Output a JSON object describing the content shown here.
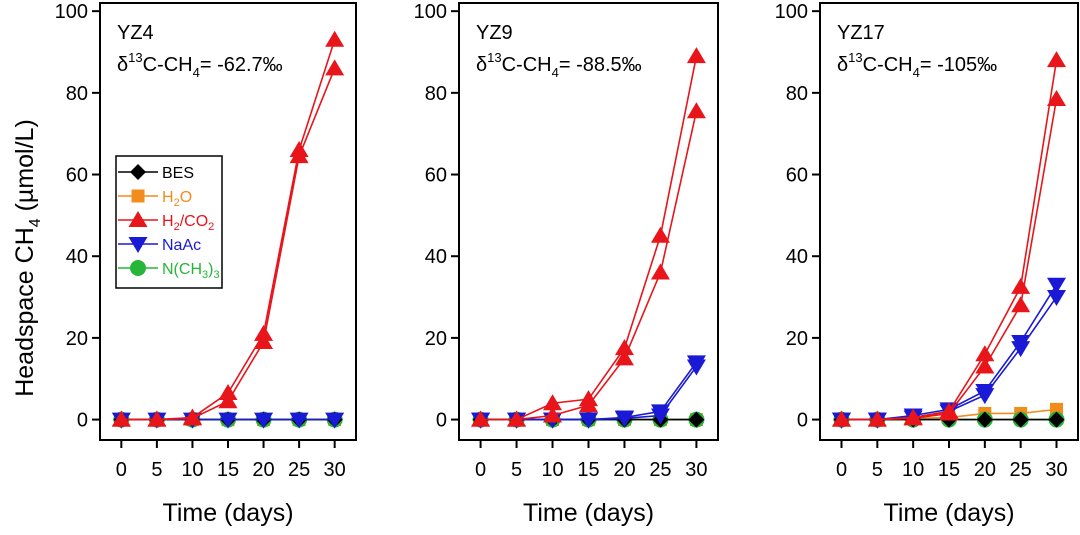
{
  "figure": {
    "ylabel_main": "Headspace CH",
    "ylabel_sub": "4",
    "ylabel_tail": " (µmol/L)"
  },
  "legend": {
    "entries": [
      {
        "label": "BES",
        "color": "#000000",
        "marker": "diamond"
      },
      {
        "label": "H2O",
        "label_parts": [
          "H",
          "2",
          "O"
        ],
        "color": "#f28c1c",
        "marker": "square"
      },
      {
        "label": "H2/CO2",
        "label_parts": [
          "H",
          "2",
          "/CO",
          "2"
        ],
        "color": "#e8151b",
        "marker": "triangle-up"
      },
      {
        "label": "NaAc",
        "color": "#1a1ad6",
        "marker": "triangle-down"
      },
      {
        "label": "N(CH3)3",
        "label_parts": [
          "N(CH",
          "3",
          ")",
          "3"
        ],
        "color": "#27b53a",
        "marker": "circle"
      }
    ]
  },
  "chart_data": [
    {
      "type": "line",
      "title": "YZ4",
      "annotation": {
        "prefix": "δ",
        "sup": "13",
        "mid": "C-CH",
        "sub": "4",
        "suffix": "= -62.7‰"
      },
      "xlabel": "Time (days)",
      "ylabel": "Headspace CH4 (µmol/L)",
      "x": [
        0,
        5,
        10,
        15,
        20,
        25,
        30
      ],
      "xlim": [
        -3,
        33
      ],
      "ylim": [
        -5,
        102
      ],
      "xticks": [
        0,
        5,
        10,
        15,
        20,
        25,
        30
      ],
      "yticks": [
        0,
        20,
        40,
        60,
        80,
        100
      ],
      "series": [
        {
          "name": "BES",
          "values": [
            0,
            0,
            0,
            0,
            0,
            0,
            0
          ]
        },
        {
          "name": "H2O",
          "values": [
            0,
            0,
            0,
            0,
            0,
            0,
            0
          ]
        },
        {
          "name": "H2/CO2 rep1",
          "values": [
            0,
            0,
            0.5,
            6.5,
            21,
            66,
            93
          ]
        },
        {
          "name": "H2/CO2 rep2",
          "values": [
            0,
            0,
            0.3,
            4.5,
            19,
            64.5,
            86
          ]
        },
        {
          "name": "NaAc",
          "values": [
            0,
            0,
            0,
            0,
            0,
            0,
            0
          ]
        },
        {
          "name": "N(CH3)3",
          "values": [
            0,
            0,
            0,
            0,
            0,
            0,
            0
          ]
        }
      ]
    },
    {
      "type": "line",
      "title": "YZ9",
      "annotation": {
        "prefix": "δ",
        "sup": "13",
        "mid": "C-CH",
        "sub": "4",
        "suffix": "= -88.5‰"
      },
      "xlabel": "Time (days)",
      "ylabel": "",
      "x": [
        0,
        5,
        10,
        15,
        20,
        25,
        30
      ],
      "xlim": [
        -3,
        33
      ],
      "ylim": [
        -5,
        102
      ],
      "xticks": [
        0,
        5,
        10,
        15,
        20,
        25,
        30
      ],
      "yticks": [
        0,
        20,
        40,
        60,
        80,
        100
      ],
      "series": [
        {
          "name": "BES",
          "values": [
            0,
            0,
            0,
            0,
            0,
            0,
            0
          ]
        },
        {
          "name": "H2O",
          "values": [
            0,
            0,
            0,
            0,
            0,
            0,
            0
          ]
        },
        {
          "name": "H2/CO2 rep1",
          "values": [
            0,
            0,
            4,
            5,
            17.5,
            45,
            89
          ]
        },
        {
          "name": "H2/CO2 rep2",
          "values": [
            0,
            0,
            1,
            3.5,
            15,
            36,
            75.5
          ]
        },
        {
          "name": "NaAc rep1",
          "values": [
            0,
            0,
            0,
            0,
            0.5,
            2,
            14
          ]
        },
        {
          "name": "NaAc rep2",
          "values": [
            0,
            0,
            0,
            0,
            0.3,
            1,
            13
          ]
        },
        {
          "name": "N(CH3)3",
          "values": [
            0,
            0,
            0,
            0,
            0,
            0,
            0
          ]
        }
      ]
    },
    {
      "type": "line",
      "title": "YZ17",
      "annotation": {
        "prefix": "δ",
        "sup": "13",
        "mid": "C-CH",
        "sub": "4",
        "suffix": "= -105‰"
      },
      "xlabel": "Time (days)",
      "ylabel": "",
      "x": [
        0,
        5,
        10,
        15,
        20,
        25,
        30
      ],
      "xlim": [
        -3,
        33
      ],
      "ylim": [
        -5,
        102
      ],
      "xticks": [
        0,
        5,
        10,
        15,
        20,
        25,
        30
      ],
      "yticks": [
        0,
        20,
        40,
        60,
        80,
        100
      ],
      "series": [
        {
          "name": "BES",
          "values": [
            0,
            0,
            0,
            0,
            0,
            0,
            0
          ]
        },
        {
          "name": "H2O",
          "values": [
            0,
            0,
            0.3,
            0.5,
            1.5,
            1.5,
            2.5
          ]
        },
        {
          "name": "H2/CO2 rep1",
          "values": [
            0,
            0,
            0.5,
            2,
            16,
            32.5,
            88
          ]
        },
        {
          "name": "H2/CO2 rep2",
          "values": [
            0,
            0,
            0.3,
            1.5,
            13,
            28,
            78.5
          ]
        },
        {
          "name": "NaAc rep1",
          "values": [
            0,
            0,
            1,
            2.5,
            7,
            19,
            33
          ]
        },
        {
          "name": "NaAc rep2",
          "values": [
            0,
            0,
            0.5,
            2,
            6,
            17.5,
            30
          ]
        },
        {
          "name": "N(CH3)3",
          "values": [
            0,
            0,
            0,
            0,
            0,
            0,
            0
          ]
        }
      ]
    }
  ]
}
